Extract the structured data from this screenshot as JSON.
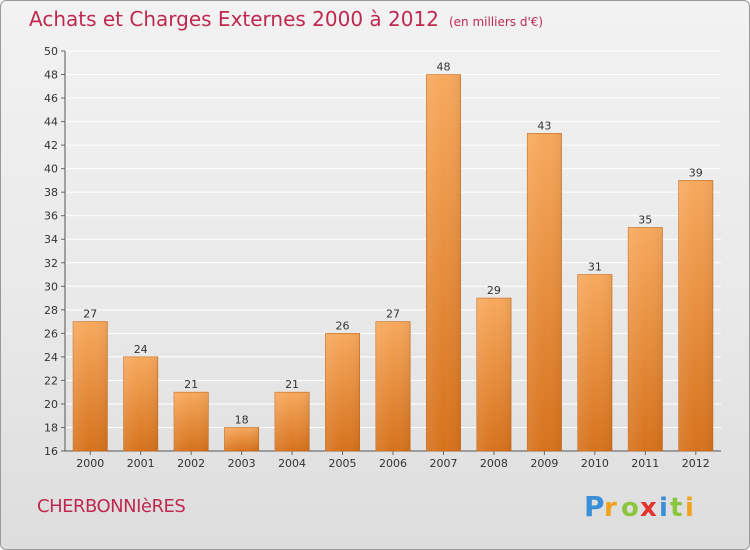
{
  "header": {
    "title": "Achats et Charges Externes 2000 à 2012",
    "unit": "(en milliers d'€)"
  },
  "town": "CHERBONNIèRES",
  "logo": {
    "text": "Proxiti",
    "letters": [
      "P",
      "r",
      "o",
      "x",
      "i",
      "t",
      "i"
    ]
  },
  "colors": {
    "title": "#c0294f",
    "bar_light": "#f6a65a",
    "bar_dark": "#d9751e",
    "grid": "#ffffff"
  },
  "chart_data": {
    "type": "bar",
    "categories": [
      "2000",
      "2001",
      "2002",
      "2003",
      "2004",
      "2005",
      "2006",
      "2007",
      "2008",
      "2009",
      "2010",
      "2011",
      "2012"
    ],
    "values": [
      27,
      24,
      21,
      18,
      21,
      26,
      27,
      48,
      29,
      43,
      31,
      35,
      39
    ],
    "ylim": [
      16,
      50
    ],
    "yticks": [
      16,
      18,
      20,
      22,
      24,
      26,
      28,
      30,
      32,
      34,
      36,
      38,
      40,
      42,
      44,
      46,
      48,
      50
    ],
    "grid": true
  }
}
